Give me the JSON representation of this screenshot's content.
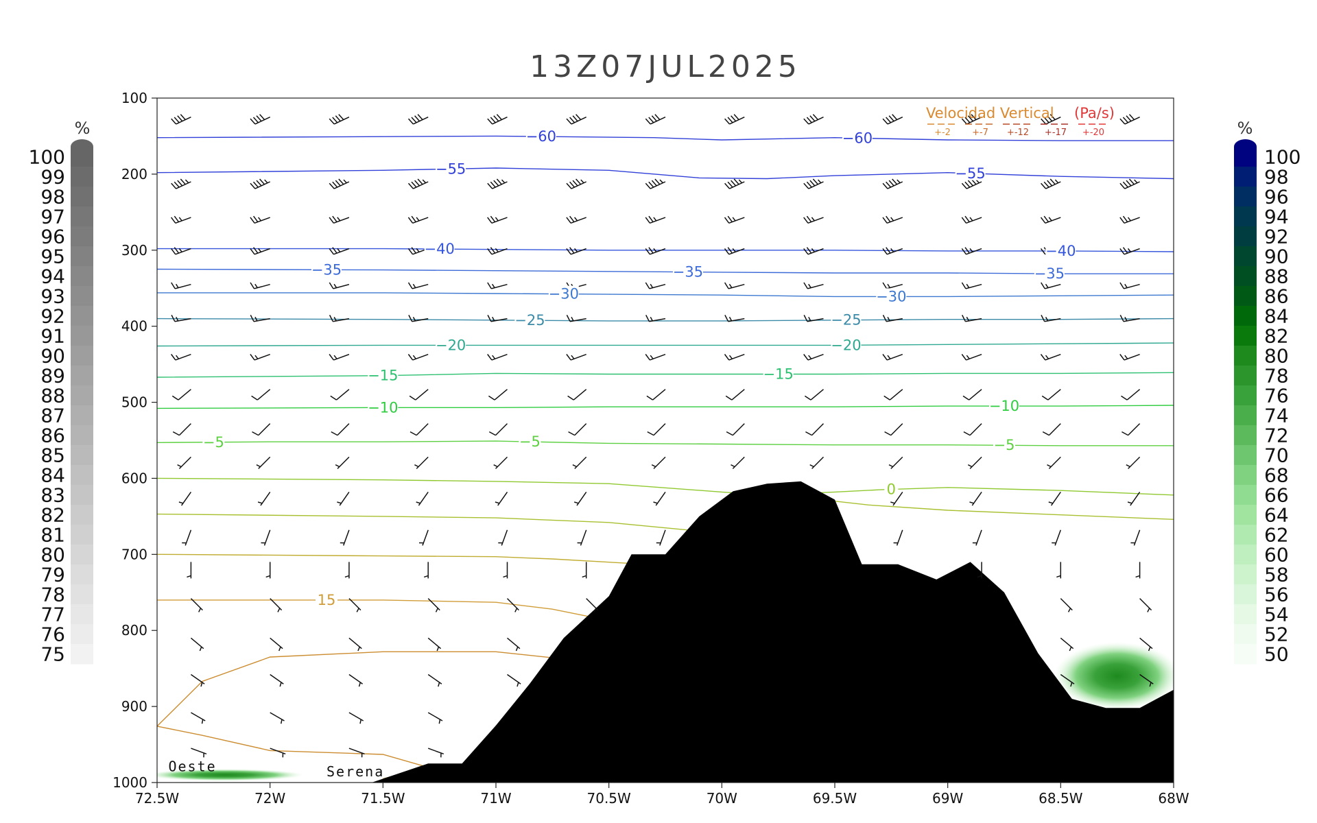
{
  "chart_data": {
    "type": "contour",
    "title": "13Z07JUL2025",
    "x_axis": {
      "ticks": [
        "72.5W",
        "72W",
        "71.5W",
        "71W",
        "70.5W",
        "70W",
        "69.5W",
        "69W",
        "68.5W",
        "68W"
      ],
      "values": [
        -72.5,
        -72,
        -71.5,
        -71,
        -70.5,
        -70,
        -69.5,
        -69,
        -68.5,
        -68
      ],
      "range": [
        -72.5,
        -68
      ]
    },
    "y_axis": {
      "ticks": [
        "100",
        "200",
        "300",
        "400",
        "500",
        "600",
        "700",
        "800",
        "900",
        "1000"
      ],
      "values": [
        100,
        200,
        300,
        400,
        500,
        600,
        700,
        800,
        900,
        1000
      ],
      "range": [
        100,
        1000
      ],
      "inverted": true
    },
    "left_colorbar": {
      "unit": "%",
      "labels": [
        "100",
        "99",
        "98",
        "97",
        "96",
        "95",
        "94",
        "93",
        "92",
        "91",
        "90",
        "89",
        "88",
        "87",
        "86",
        "85",
        "84",
        "83",
        "82",
        "81",
        "80",
        "79",
        "78",
        "77",
        "76",
        "75"
      ],
      "color_top": "#666666",
      "color_bottom": "#f2f2f2"
    },
    "right_colorbar": {
      "unit": "%",
      "labels": [
        "100",
        "98",
        "96",
        "94",
        "92",
        "90",
        "88",
        "86",
        "84",
        "82",
        "80",
        "78",
        "76",
        "74",
        "72",
        "70",
        "68",
        "66",
        "64",
        "62",
        "60",
        "58",
        "56",
        "54",
        "52",
        "50"
      ],
      "colors": [
        "#00037f",
        "#001f74",
        "#002e62",
        "#00384f",
        "#003d40",
        "#004730",
        "#004f22",
        "#005a15",
        "#006a0a",
        "#0a7a0c",
        "#1e8a1e",
        "#2c962c",
        "#3aa23a",
        "#4aae4a",
        "#5cba5c",
        "#6ec66e",
        "#80d280",
        "#90dc90",
        "#a0e4a0",
        "#b0eab0",
        "#bfefbf",
        "#cdf3cd",
        "#daf6da",
        "#e5f9e5",
        "#eefbee",
        "#f6fdf6"
      ]
    },
    "temperature_contours": [
      {
        "label": "-60",
        "color": "#3040d8",
        "points": [
          [
            -72.5,
            152
          ],
          [
            -71,
            150
          ],
          [
            -70.3,
            152
          ],
          [
            -70,
            155
          ],
          [
            -69.5,
            152
          ],
          [
            -69,
            155
          ],
          [
            -68.5,
            156
          ],
          [
            -68,
            156
          ]
        ],
        "label_at": [
          [
            -70.8,
            -60
          ],
          [
            -69.4,
            -60
          ]
        ]
      },
      {
        "label": "-55",
        "color": "#3040d8",
        "points": [
          [
            -72.5,
            198
          ],
          [
            -71.5,
            195
          ],
          [
            -71,
            192
          ],
          [
            -70.5,
            195
          ],
          [
            -70.1,
            205
          ],
          [
            -69.8,
            206
          ],
          [
            -69.5,
            202
          ],
          [
            -69,
            198
          ],
          [
            -68.5,
            203
          ],
          [
            -68,
            206
          ]
        ],
        "label_at": [
          [
            -71.2,
            -55
          ],
          [
            -68.9,
            -55
          ]
        ]
      },
      {
        "label": "-40",
        "color": "#3455dc",
        "points": [
          [
            -72.5,
            298
          ],
          [
            -71.5,
            298
          ],
          [
            -71,
            299
          ],
          [
            -70.5,
            300
          ],
          [
            -70,
            300
          ],
          [
            -69.5,
            300
          ],
          [
            -69,
            301
          ],
          [
            -68.5,
            301
          ],
          [
            -68,
            302
          ]
        ],
        "label_at": [
          [
            -71.25,
            -40
          ],
          [
            -68.5,
            -40
          ]
        ]
      },
      {
        "label": "-35",
        "color": "#3c6ad8",
        "points": [
          [
            -72.5,
            325
          ],
          [
            -71.5,
            326
          ],
          [
            -71,
            327
          ],
          [
            -70.5,
            328
          ],
          [
            -70,
            329
          ],
          [
            -69.5,
            330
          ],
          [
            -69,
            330
          ],
          [
            -68.5,
            331
          ],
          [
            -68,
            331
          ]
        ],
        "label_at": [
          [
            -71.75,
            -35
          ],
          [
            -70.15,
            -35
          ],
          [
            -68.55,
            -35
          ]
        ]
      },
      {
        "label": "-30",
        "color": "#3c78d0",
        "points": [
          [
            -72.5,
            356
          ],
          [
            -71.5,
            356
          ],
          [
            -71,
            357
          ],
          [
            -70.5,
            358
          ],
          [
            -70,
            359
          ],
          [
            -69.5,
            361
          ],
          [
            -69,
            361
          ],
          [
            -68.5,
            360
          ],
          [
            -68,
            359
          ]
        ],
        "label_at": [
          [
            -70.7,
            -30
          ],
          [
            -69.25,
            -30
          ]
        ]
      },
      {
        "label": "-25",
        "color": "#3a8aa8",
        "points": [
          [
            -72.5,
            390
          ],
          [
            -71.5,
            391
          ],
          [
            -71,
            392
          ],
          [
            -70.5,
            393
          ],
          [
            -70,
            393
          ],
          [
            -69.5,
            392
          ],
          [
            -69,
            391
          ],
          [
            -68.5,
            391
          ],
          [
            -68,
            390
          ]
        ],
        "label_at": [
          [
            -70.85,
            -25
          ],
          [
            -69.45,
            -25
          ]
        ]
      },
      {
        "label": "-20",
        "color": "#2ea890",
        "points": [
          [
            -72.5,
            426
          ],
          [
            -71.5,
            425
          ],
          [
            -71,
            425
          ],
          [
            -70.5,
            425
          ],
          [
            -70,
            425
          ],
          [
            -69.5,
            425
          ],
          [
            -69,
            424
          ],
          [
            -68.5,
            423
          ],
          [
            -68,
            422
          ]
        ],
        "label_at": [
          [
            -71.2,
            -20
          ],
          [
            -69.45,
            -20
          ]
        ]
      },
      {
        "label": "-15",
        "color": "#2cc070",
        "points": [
          [
            -72.5,
            467
          ],
          [
            -71.5,
            465
          ],
          [
            -71,
            462
          ],
          [
            -70.5,
            463
          ],
          [
            -70,
            463
          ],
          [
            -69.5,
            463
          ],
          [
            -69,
            462
          ],
          [
            -68.5,
            462
          ],
          [
            -68,
            461
          ]
        ],
        "label_at": [
          [
            -71.5,
            -15
          ],
          [
            -69.75,
            -15
          ]
        ]
      },
      {
        "label": "-10",
        "color": "#30cc40",
        "points": [
          [
            -72.5,
            508
          ],
          [
            -71.5,
            507
          ],
          [
            -71,
            507
          ],
          [
            -70.5,
            506
          ],
          [
            -70,
            506
          ],
          [
            -69.5,
            506
          ],
          [
            -69,
            505
          ],
          [
            -68.5,
            505
          ],
          [
            -68,
            504
          ]
        ],
        "label_at": [
          [
            -71.5,
            -10
          ],
          [
            -68.75,
            -10
          ]
        ]
      },
      {
        "label": "-5",
        "color": "#5cd040",
        "points": [
          [
            -72.5,
            553
          ],
          [
            -72,
            552
          ],
          [
            -71.5,
            552
          ],
          [
            -71,
            551
          ],
          [
            -70.5,
            554
          ],
          [
            -70,
            555
          ],
          [
            -69.5,
            556
          ],
          [
            -69,
            556
          ],
          [
            -68.5,
            557
          ],
          [
            -68,
            557
          ]
        ],
        "label_at": [
          [
            -72.25,
            -5
          ],
          [
            -70.85,
            -5
          ],
          [
            -68.75,
            -5
          ]
        ]
      },
      {
        "label": "0",
        "color": "#90c830",
        "points": [
          [
            -72.5,
            600
          ],
          [
            -71.5,
            602
          ],
          [
            -71,
            604
          ],
          [
            -70.5,
            607
          ],
          [
            -70,
            618
          ],
          [
            -69.8,
            622
          ],
          [
            -69.5,
            618
          ],
          [
            -69.3,
            615
          ],
          [
            -69,
            612
          ],
          [
            -68.5,
            616
          ],
          [
            -68,
            622
          ]
        ],
        "label_at": [
          [
            -69.25,
            0
          ]
        ]
      },
      {
        "label": "",
        "color": "#a8c030",
        "points": [
          [
            -72.5,
            647
          ],
          [
            -71.5,
            650
          ],
          [
            -71,
            652
          ],
          [
            -70.5,
            658
          ],
          [
            -70.15,
            668
          ],
          [
            -69.65,
            625
          ],
          [
            -69.35,
            635
          ],
          [
            -69,
            642
          ],
          [
            -68.5,
            648
          ],
          [
            -68,
            654
          ]
        ],
        "label_at": []
      },
      {
        "label": "",
        "color": "#c0ac30",
        "points": [
          [
            -72.5,
            700
          ],
          [
            -71.5,
            702
          ],
          [
            -71,
            703
          ],
          [
            -70.75,
            706
          ],
          [
            -70.4,
            712
          ]
        ],
        "label_at": []
      },
      {
        "label": "15",
        "color": "#d09c38",
        "points": [
          [
            -72.5,
            760
          ],
          [
            -71.5,
            760
          ],
          [
            -71,
            763
          ],
          [
            -70.75,
            772
          ],
          [
            -70.5,
            787
          ]
        ],
        "label_at": [
          [
            -71.75,
            15
          ]
        ]
      },
      {
        "label": "",
        "color": "#cc8c30",
        "points": [
          [
            -70.75,
            836
          ],
          [
            -71,
            828
          ],
          [
            -71.5,
            828
          ],
          [
            -72,
            835
          ],
          [
            -72.3,
            867
          ],
          [
            -72.5,
            926
          ],
          [
            -72.3,
            938
          ],
          [
            -72,
            958
          ],
          [
            -71.5,
            963
          ],
          [
            -71.3,
            980
          ],
          [
            -71.5,
            995
          ]
        ],
        "label_at": []
      }
    ],
    "moisture_shading": [
      {
        "lon": -68.25,
        "p": 860,
        "rx_deg": 0.28,
        "ry_hpa": 45,
        "value": 86
      },
      {
        "lon": -72.2,
        "p": 990,
        "rx_deg": 0.35,
        "ry_hpa": 8,
        "value": 80
      }
    ],
    "terrain": [
      [
        -71.55,
        1000
      ],
      [
        -71.3,
        975
      ],
      [
        -71.15,
        975
      ],
      [
        -71,
        925
      ],
      [
        -70.85,
        870
      ],
      [
        -70.7,
        810
      ],
      [
        -70.5,
        755
      ],
      [
        -70.4,
        700
      ],
      [
        -70.25,
        700
      ],
      [
        -70.1,
        650
      ],
      [
        -69.95,
        617
      ],
      [
        -69.8,
        607
      ],
      [
        -69.65,
        604
      ],
      [
        -69.5,
        628
      ],
      [
        -69.38,
        713
      ],
      [
        -69.22,
        713
      ],
      [
        -69.05,
        733
      ],
      [
        -68.9,
        710
      ],
      [
        -68.75,
        750
      ],
      [
        -68.6,
        830
      ],
      [
        -68.45,
        890
      ],
      [
        -68.3,
        902
      ],
      [
        -68.15,
        902
      ],
      [
        -68,
        878
      ]
    ],
    "wind_barbs": {
      "columns": [
        -72.35,
        -72,
        -71.65,
        -71.3,
        -70.95,
        -70.6,
        -70.25,
        -69.9,
        -69.55,
        -69.2,
        -68.85,
        -68.5,
        -68.15
      ],
      "levels": [
        {
          "p": 125,
          "dir": 245,
          "speed": 40
        },
        {
          "p": 210,
          "dir": 245,
          "speed": 45
        },
        {
          "p": 257,
          "dir": 250,
          "speed": 25
        },
        {
          "p": 298,
          "dir": 250,
          "speed": 25
        },
        {
          "p": 345,
          "dir": 255,
          "speed": 15
        },
        {
          "p": 390,
          "dir": 260,
          "speed": 15
        },
        {
          "p": 437,
          "dir": 250,
          "speed": 15
        },
        {
          "p": 483,
          "dir": 230,
          "speed": 10
        },
        {
          "p": 528,
          "dir": 225,
          "speed": 10
        },
        {
          "p": 572,
          "dir": 225,
          "speed": 5
        },
        {
          "p": 618,
          "dir": 215,
          "speed": 5
        },
        {
          "p": 668,
          "dir": 200,
          "speed": 5
        },
        {
          "p": 710,
          "dir": 180,
          "speed": 5
        },
        {
          "p": 758,
          "dir": 135,
          "speed": 5
        },
        {
          "p": 810,
          "dir": 130,
          "speed": 5
        },
        {
          "p": 858,
          "dir": 125,
          "speed": 5
        },
        {
          "p": 908,
          "dir": 120,
          "speed": 5
        },
        {
          "p": 955,
          "dir": 110,
          "speed": 5
        }
      ]
    },
    "legend": {
      "title": "Velocidad Vertical",
      "units": "(Pa/s)",
      "values": [
        "+-2",
        "+-7",
        "+-12",
        "+-17",
        "+-20"
      ],
      "colors": [
        "#d98a30",
        "#cc6a2a",
        "#b84a26",
        "#a83228",
        "#e03838"
      ],
      "placement": "top-right"
    },
    "places": [
      {
        "name": "Oeste",
        "lon": -72.45,
        "p": 985
      },
      {
        "name": "Serena",
        "lon": -71.75,
        "p": 992
      }
    ]
  }
}
